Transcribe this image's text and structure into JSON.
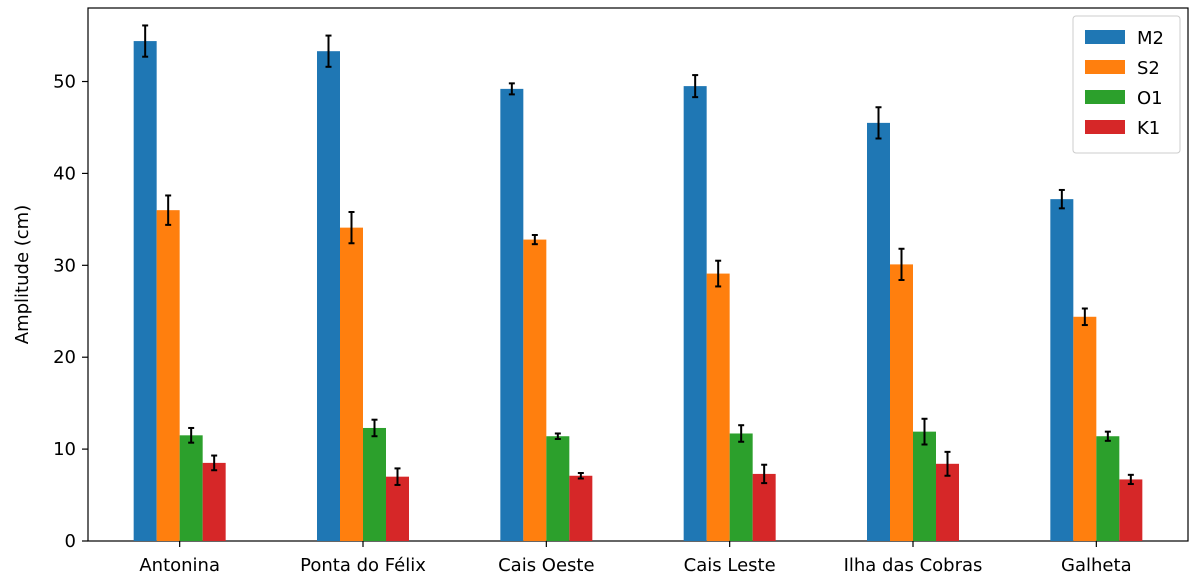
{
  "chart_data": {
    "type": "bar",
    "title": "",
    "xlabel": "",
    "ylabel": "Amplitude (cm)",
    "ylim": [
      0,
      58
    ],
    "yticks": [
      0,
      10,
      20,
      30,
      40,
      50
    ],
    "grid": false,
    "legend_position": "top-right",
    "categories": [
      "Antonina",
      "Ponta do Félix",
      "Cais Oeste",
      "Cais Leste",
      "Ilha das Cobras",
      "Galheta"
    ],
    "series": [
      {
        "name": "M2",
        "color": "#1f77b4",
        "values": [
          54.4,
          53.3,
          49.2,
          49.5,
          45.5,
          37.2
        ],
        "errors": [
          1.7,
          1.7,
          0.6,
          1.2,
          1.7,
          1.0
        ]
      },
      {
        "name": "S2",
        "color": "#ff7f0e",
        "values": [
          36.0,
          34.1,
          32.8,
          29.1,
          30.1,
          24.4
        ],
        "errors": [
          1.6,
          1.7,
          0.5,
          1.4,
          1.7,
          0.9
        ]
      },
      {
        "name": "O1",
        "color": "#2ca02c",
        "values": [
          11.5,
          12.3,
          11.4,
          11.7,
          11.9,
          11.4
        ],
        "errors": [
          0.8,
          0.9,
          0.3,
          0.9,
          1.4,
          0.5
        ]
      },
      {
        "name": "K1",
        "color": "#d62728",
        "values": [
          8.5,
          7.0,
          7.1,
          7.3,
          8.4,
          6.7
        ],
        "errors": [
          0.8,
          0.9,
          0.3,
          1.0,
          1.3,
          0.5
        ]
      }
    ]
  }
}
